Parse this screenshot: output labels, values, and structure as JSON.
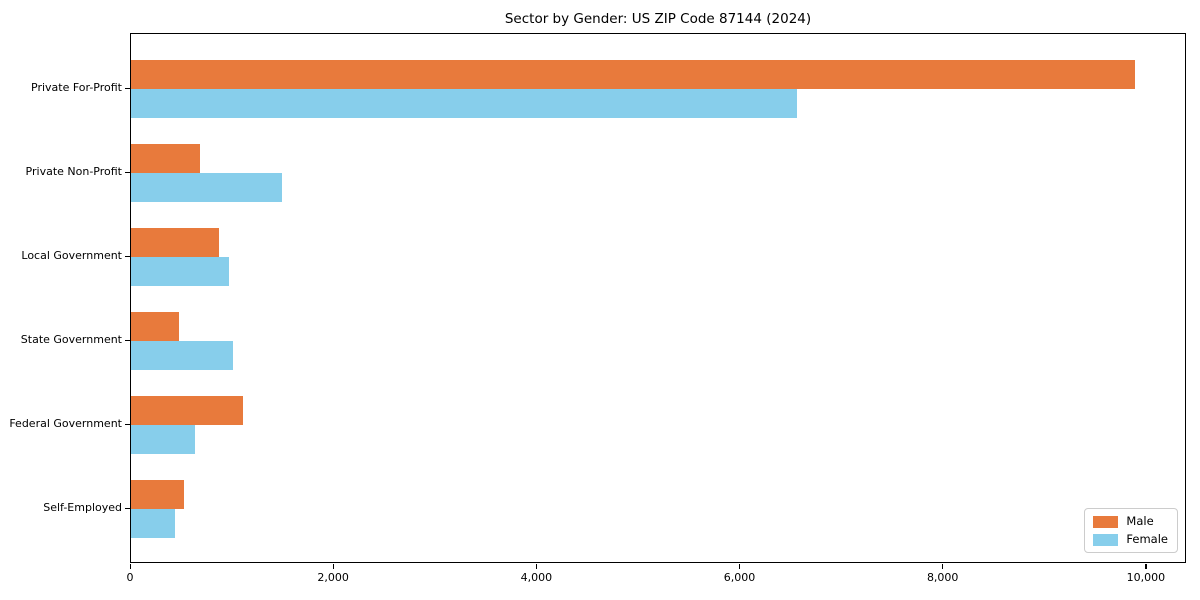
{
  "title": "Sector by Gender: US ZIP Code 87144 (2024)",
  "colors": {
    "male": "#e87a3c",
    "female": "#87ceeb",
    "axis": "#000000",
    "legend_border": "#cccccc",
    "background": "#ffffff"
  },
  "chart_data": {
    "type": "bar",
    "orientation": "horizontal",
    "title": "Sector by Gender: US ZIP Code 87144 (2024)",
    "xlabel": "",
    "ylabel": "",
    "categories": [
      "Private For-Profit",
      "Private Non-Profit",
      "Local Government",
      "State Government",
      "Federal Government",
      "Self-Employed"
    ],
    "series": [
      {
        "name": "Male",
        "color": "#e87a3c",
        "values": [
          9900,
          680,
          870,
          470,
          1100,
          520
        ]
      },
      {
        "name": "Female",
        "color": "#87ceeb",
        "values": [
          6570,
          1490,
          970,
          1010,
          630,
          430
        ]
      }
    ],
    "xlim": [
      0,
      10395
    ],
    "xticks": [
      0,
      2000,
      4000,
      6000,
      8000,
      10000
    ],
    "xtick_labels": [
      "0",
      "2,000",
      "4,000",
      "6,000",
      "8,000",
      "10,000"
    ],
    "grid": false,
    "legend": {
      "position": "lower right",
      "entries": [
        "Male",
        "Female"
      ]
    }
  }
}
